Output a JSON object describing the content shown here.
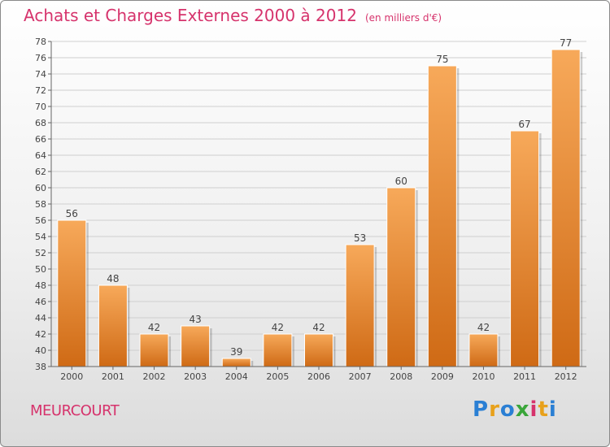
{
  "title": "Achats et Charges Externes 2000 à 2012",
  "subtitle": "(en milliers d'€)",
  "location": "MEURCOURT",
  "brand": {
    "text": "Proxiti",
    "letters": [
      "P",
      "r",
      "o",
      "x",
      "i",
      "t",
      "i"
    ],
    "colors": [
      "#2a7fd4",
      "#e8a11b",
      "#2a7fd4",
      "#3aa63a",
      "#d6336c",
      "#e8a11b",
      "#2a7fd4"
    ]
  },
  "colors": {
    "bar_top": "#f7a95a",
    "bar_bottom": "#cf6a15",
    "title": "#d6336c"
  },
  "chart_data": {
    "type": "bar",
    "categories": [
      "2000",
      "2001",
      "2002",
      "2003",
      "2004",
      "2005",
      "2006",
      "2007",
      "2008",
      "2009",
      "2010",
      "2011",
      "2012"
    ],
    "values": [
      56,
      48,
      42,
      43,
      39,
      42,
      42,
      53,
      60,
      75,
      42,
      67,
      77
    ],
    "value_labels": [
      "56",
      "48",
      "42",
      "43",
      "39",
      "42",
      "42",
      "53",
      "60",
      "75",
      "42",
      "67",
      "77"
    ],
    "ylim": [
      38,
      78
    ],
    "yticks": [
      "38",
      "40",
      "42",
      "44",
      "46",
      "48",
      "50",
      "52",
      "54",
      "56",
      "58",
      "60",
      "62",
      "64",
      "66",
      "68",
      "70",
      "72",
      "74",
      "76",
      "78"
    ],
    "grid": true,
    "legend": "none"
  }
}
